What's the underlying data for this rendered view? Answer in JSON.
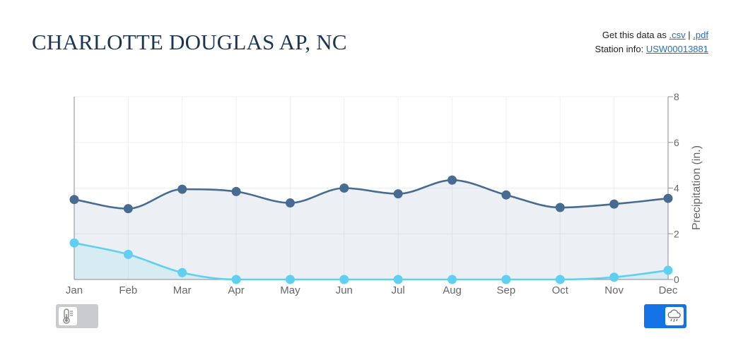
{
  "station": {
    "title": "CHARLOTTE DOUGLAS AP, NC",
    "get_data_label": "Get this data as",
    "csv_link": ".csv",
    "separator": "|",
    "pdf_link": ".pdf",
    "station_info_label": "Station info:",
    "station_id": "USW00013881"
  },
  "toggles": {
    "temperature": {
      "icon": "thermometer-icon",
      "state": "off",
      "color": "#c9cbcf"
    },
    "precipitation": {
      "icon": "rain-cloud-icon",
      "state": "on",
      "color": "#1473e6"
    }
  },
  "chart_data": {
    "type": "area",
    "categories": [
      "Jan",
      "Feb",
      "Mar",
      "Apr",
      "May",
      "Jun",
      "Jul",
      "Aug",
      "Sep",
      "Oct",
      "Nov",
      "Dec"
    ],
    "series": [
      {
        "values": [
          3.5,
          3.1,
          3.95,
          3.85,
          3.35,
          4.0,
          3.75,
          4.35,
          3.7,
          3.15,
          3.3,
          3.55
        ],
        "color": "#476b91"
      },
      {
        "values": [
          1.6,
          1.1,
          0.3,
          0.0,
          0.0,
          0.0,
          0.0,
          0.0,
          0.0,
          0.0,
          0.1,
          0.4
        ],
        "color": "#5fd0f2"
      }
    ],
    "ylabel": "Precipitation (in.)",
    "ylim": [
      0,
      8
    ],
    "yticks": [
      0,
      2,
      4,
      6,
      8
    ],
    "y_axis_side": "right",
    "grid": true
  }
}
